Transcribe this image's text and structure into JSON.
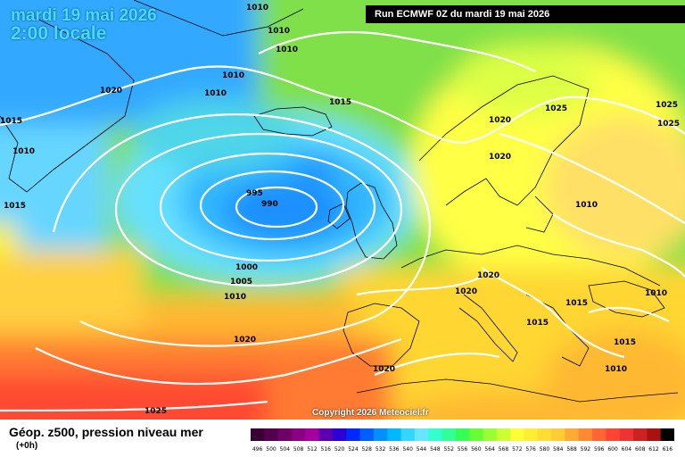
{
  "header": {
    "date": "mardi 19 mai 2026",
    "time": "2:00 locale",
    "run": "Run ECMWF 0Z du mardi 19 mai 2026"
  },
  "footer": {
    "copyright": "Copyright 2026 Meteociel.fr",
    "legend_title": "Géop. z500, pression niveau mer",
    "legend_sub": "(+0h)"
  },
  "isobar_labels": [
    "1010",
    "1010",
    "1010",
    "1020",
    "1010",
    "1010",
    "1015",
    "1015",
    "1010",
    "1015",
    "1020",
    "1025",
    "1025",
    "1025",
    "1020",
    "995",
    "990",
    "1000",
    "1005",
    "1010",
    "1010",
    "1020",
    "1020",
    "1020",
    "1015",
    "1015",
    "1010",
    "1015",
    "1010",
    "1020",
    "1025"
  ],
  "colorbar": {
    "ticks": [
      "496",
      "500",
      "504",
      "508",
      "512",
      "516",
      "520",
      "524",
      "528",
      "532",
      "536",
      "540",
      "544",
      "548",
      "552",
      "556",
      "560",
      "564",
      "568",
      "572",
      "576",
      "580",
      "584",
      "588",
      "592",
      "596",
      "600",
      "604",
      "608",
      "612",
      "616"
    ],
    "colors": [
      "#3a0033",
      "#55004d",
      "#6e0066",
      "#8a0080",
      "#a3009e",
      "#5a00b0",
      "#2b00d6",
      "#0028ff",
      "#0060ff",
      "#0090ff",
      "#00b8ff",
      "#33d6ff",
      "#66e6ff",
      "#33ffcc",
      "#33ff99",
      "#33ff55",
      "#66ff33",
      "#99ff33",
      "#ccff33",
      "#ffff33",
      "#ffee33",
      "#ffdd33",
      "#ffcc33",
      "#ffaa33",
      "#ff8833",
      "#ff6633",
      "#ff4433",
      "#ee3333",
      "#cc2222",
      "#aa1111",
      "#000000"
    ]
  },
  "colors": {
    "title": "#4ad9ff",
    "isobar": "#ffffff",
    "coast": "#000000"
  }
}
